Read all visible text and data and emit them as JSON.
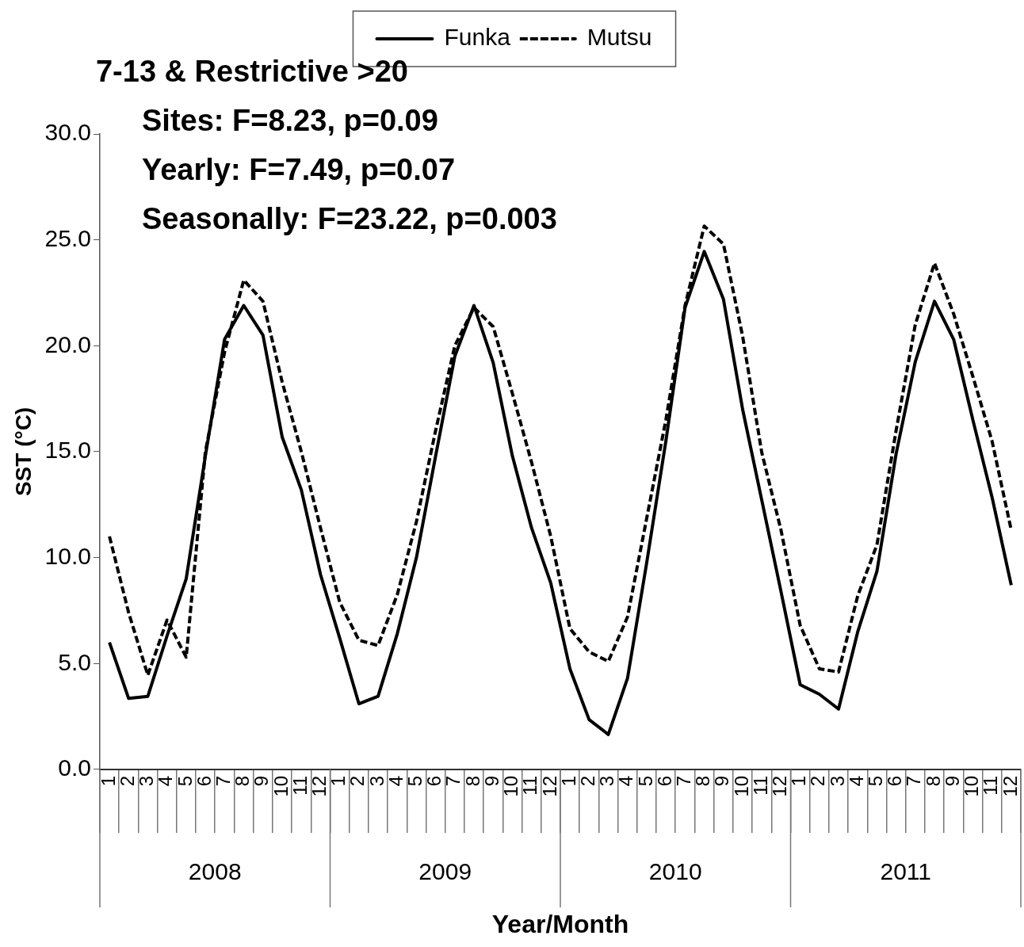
{
  "chart_data": {
    "type": "line",
    "xlabel": "Year/Month",
    "ylabel": "SST (°C)",
    "categories": [
      "1",
      "2",
      "3",
      "4",
      "5",
      "6",
      "7",
      "8",
      "9",
      "10",
      "11",
      "12",
      "1",
      "2",
      "3",
      "4",
      "5",
      "6",
      "7",
      "8",
      "9",
      "10",
      "11",
      "12",
      "1",
      "2",
      "3",
      "4",
      "5",
      "6",
      "7",
      "8",
      "9",
      "10",
      "11",
      "12",
      "1",
      "2",
      "3",
      "4",
      "5",
      "6",
      "7",
      "8",
      "9",
      "10",
      "11",
      "12"
    ],
    "series": [
      {
        "name": "Funka",
        "color": "#000000",
        "line_style": "solid",
        "values": [
          6.0,
          3.35,
          3.45,
          6.3,
          9.0,
          14.8,
          20.3,
          21.9,
          20.5,
          15.7,
          13.2,
          9.2,
          6.2,
          3.1,
          3.45,
          6.4,
          10.0,
          14.8,
          19.5,
          21.9,
          19.2,
          14.8,
          11.4,
          8.8,
          4.75,
          2.35,
          1.65,
          4.3,
          9.75,
          15.5,
          21.8,
          24.45,
          22.2,
          17.0,
          12.7,
          8.4,
          4.0,
          3.55,
          2.85,
          6.5,
          9.35,
          14.9,
          19.25,
          22.1,
          20.3,
          16.5,
          12.85,
          8.7
        ]
      },
      {
        "name": "Mutsu",
        "color": "#000000",
        "line_style": "dashed",
        "values": [
          11.0,
          7.4,
          4.45,
          7.05,
          5.3,
          15.0,
          19.7,
          23.1,
          22.1,
          18.3,
          15.0,
          11.4,
          7.9,
          6.1,
          5.85,
          8.25,
          11.7,
          16.0,
          20.0,
          21.8,
          20.9,
          17.75,
          14.5,
          11.0,
          6.65,
          5.55,
          5.1,
          7.2,
          11.85,
          16.5,
          21.9,
          25.65,
          24.8,
          20.45,
          14.95,
          11.3,
          6.8,
          4.75,
          4.6,
          8.2,
          10.6,
          16.0,
          21.0,
          23.9,
          21.5,
          18.55,
          15.5,
          11.3
        ]
      }
    ],
    "ylim": [
      0,
      30
    ],
    "yticks": [
      {
        "value": 0,
        "label": "0.0"
      },
      {
        "value": 5,
        "label": "5.0"
      },
      {
        "value": 10,
        "label": "10.0"
      },
      {
        "value": 15,
        "label": "15.0"
      },
      {
        "value": 20,
        "label": "20.0"
      },
      {
        "value": 25,
        "label": "25.0"
      },
      {
        "value": 30,
        "label": "30.0"
      }
    ],
    "grid": false,
    "legend": "top",
    "marker": "none",
    "annotations": [
      "7-13 & Restrictive >20",
      "Sites: F=8.23, p=0.09",
      "Yearly: F=7.49, p=0.07",
      "Seasonally: F=23.22, p=0.003",
      "2008",
      "2009",
      "2010",
      "2011"
    ]
  }
}
